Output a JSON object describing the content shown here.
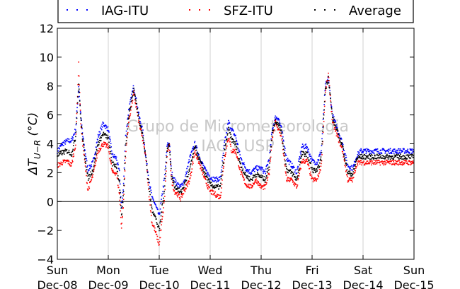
{
  "chart_data": {
    "type": "scatter",
    "title": "",
    "ylabel": "ΔT_{U−R} (°C)",
    "ylim": [
      -4,
      12
    ],
    "yticks": [
      -4,
      -2,
      0,
      2,
      4,
      6,
      8,
      10,
      12
    ],
    "xlim_days": [
      0,
      7
    ],
    "x_ticks": [
      {
        "day": "Sun",
        "date": "Dec-08"
      },
      {
        "day": "Mon",
        "date": "Dec-09"
      },
      {
        "day": "Tue",
        "date": "Dec-10"
      },
      {
        "day": "Wed",
        "date": "Dec-11"
      },
      {
        "day": "Thu",
        "date": "Dec-12"
      },
      {
        "day": "Fri",
        "date": "Dec-13"
      },
      {
        "day": "Sat",
        "date": "Dec-14"
      },
      {
        "day": "Sun",
        "date": "Dec-15"
      }
    ],
    "grid": "vertical",
    "zero_line": true,
    "legend_placement": "top",
    "watermark": [
      "Grupo de Micrometeorologia",
      "IAG - USP"
    ],
    "series": [
      {
        "name": "IAG-ITU",
        "color": "#0000ff",
        "x": [
          0,
          0.1,
          0.2,
          0.28,
          0.36,
          0.42,
          0.46,
          0.5,
          0.6,
          0.7,
          0.8,
          0.9,
          1.0,
          1.08,
          1.16,
          1.22,
          1.26,
          1.3,
          1.34,
          1.4,
          1.5,
          1.6,
          1.68,
          1.74,
          1.8,
          1.86,
          1.9,
          2.0,
          2.1,
          2.16,
          2.2,
          2.24,
          2.3,
          2.36,
          2.42,
          2.5,
          2.6,
          2.7,
          2.8,
          2.9,
          3.0,
          3.1,
          3.2,
          3.28,
          3.36,
          3.42,
          3.5,
          3.6,
          3.7,
          3.8,
          3.9,
          4.0,
          4.08,
          4.16,
          4.22,
          4.28,
          4.34,
          4.4,
          4.5,
          4.6,
          4.7,
          4.8,
          4.9,
          5.0,
          5.1,
          5.18,
          5.26,
          5.32,
          5.4,
          5.5,
          5.6,
          5.7,
          5.8,
          5.88,
          5.96,
          6.0,
          6.06,
          6.12,
          6.18,
          6.24,
          6.3,
          6.36,
          6.42,
          6.5,
          6.6,
          6.7,
          6.8,
          6.9,
          7.0
        ],
        "y": [
          3.5,
          4.0,
          4.2,
          4.2,
          5.0,
          8.0,
          6.0,
          4.5,
          2.2,
          2.7,
          4.5,
          5.4,
          5.0,
          3.2,
          3.0,
          2.0,
          -0.5,
          1.2,
          4.5,
          6.3,
          8.0,
          6.0,
          4.8,
          3.0,
          1.5,
          0.2,
          0.0,
          -1.0,
          1.5,
          4.0,
          4.0,
          2.0,
          1.5,
          1.2,
          1.0,
          1.5,
          3.0,
          4.0,
          3.0,
          2.2,
          1.7,
          1.5,
          1.6,
          4.0,
          5.5,
          5.0,
          4.5,
          3.0,
          2.3,
          2.0,
          2.3,
          2.3,
          2.0,
          3.0,
          5.0,
          5.8,
          5.8,
          5.0,
          3.0,
          2.5,
          2.0,
          3.8,
          3.8,
          2.8,
          2.7,
          3.5,
          8.0,
          8.5,
          6.0,
          5.0,
          4.0,
          2.5,
          2.3,
          3.2,
          3.5,
          3.5,
          3.5,
          3.5,
          3.5,
          3.5,
          3.5,
          3.5,
          3.5,
          3.5,
          3.5,
          3.5,
          3.5,
          3.5,
          3.5
        ]
      },
      {
        "name": "SFZ-ITU",
        "color": "#ff0000",
        "x": [
          0,
          0.1,
          0.2,
          0.28,
          0.36,
          0.42,
          0.46,
          0.5,
          0.6,
          0.7,
          0.8,
          0.9,
          1.0,
          1.08,
          1.16,
          1.22,
          1.26,
          1.3,
          1.34,
          1.4,
          1.5,
          1.6,
          1.68,
          1.74,
          1.8,
          1.86,
          1.9,
          2.0,
          2.1,
          2.16,
          2.2,
          2.24,
          2.3,
          2.36,
          2.42,
          2.5,
          2.6,
          2.7,
          2.8,
          2.9,
          3.0,
          3.1,
          3.2,
          3.28,
          3.36,
          3.42,
          3.5,
          3.6,
          3.7,
          3.8,
          3.9,
          4.0,
          4.08,
          4.16,
          4.22,
          4.28,
          4.34,
          4.4,
          4.5,
          4.6,
          4.7,
          4.8,
          4.9,
          5.0,
          5.1,
          5.18,
          5.26,
          5.32,
          5.4,
          5.5,
          5.6,
          5.7,
          5.8,
          5.88,
          5.96,
          6.0,
          6.06,
          6.12,
          6.18,
          6.24,
          6.3,
          6.36,
          6.42,
          6.5,
          6.6,
          6.7,
          6.8,
          6.9,
          7.0
        ],
        "y": [
          2.5,
          2.7,
          2.8,
          2.5,
          4.0,
          9.5,
          5.5,
          4.0,
          0.8,
          1.8,
          3.5,
          4.0,
          3.8,
          2.0,
          2.0,
          0.5,
          -1.8,
          0.0,
          3.2,
          5.5,
          7.5,
          5.5,
          4.2,
          3.0,
          0.5,
          -1.5,
          -1.8,
          -3.0,
          0.0,
          3.5,
          3.8,
          1.5,
          0.7,
          0.5,
          0.2,
          0.8,
          1.5,
          3.5,
          2.5,
          1.5,
          0.7,
          0.5,
          0.3,
          3.0,
          4.5,
          3.5,
          3.5,
          2.0,
          1.2,
          1.0,
          1.5,
          1.0,
          1.0,
          2.0,
          4.5,
          5.5,
          5.0,
          4.5,
          1.5,
          1.5,
          1.0,
          2.8,
          2.8,
          1.5,
          1.5,
          2.5,
          7.5,
          8.8,
          5.5,
          4.5,
          3.5,
          1.5,
          1.5,
          2.7,
          2.7,
          2.7,
          2.7,
          2.7,
          2.7,
          2.7,
          2.7,
          2.7,
          2.7,
          2.7,
          2.7,
          2.7,
          2.7,
          2.7,
          2.7
        ]
      },
      {
        "name": "Average",
        "color": "#000000",
        "x": [
          0,
          0.1,
          0.2,
          0.28,
          0.36,
          0.42,
          0.46,
          0.5,
          0.6,
          0.7,
          0.8,
          0.9,
          1.0,
          1.08,
          1.16,
          1.22,
          1.26,
          1.3,
          1.34,
          1.4,
          1.5,
          1.6,
          1.68,
          1.74,
          1.8,
          1.86,
          1.9,
          2.0,
          2.1,
          2.16,
          2.2,
          2.24,
          2.3,
          2.36,
          2.42,
          2.5,
          2.6,
          2.7,
          2.8,
          2.9,
          3.0,
          3.1,
          3.2,
          3.28,
          3.36,
          3.42,
          3.5,
          3.6,
          3.7,
          3.8,
          3.9,
          4.0,
          4.08,
          4.16,
          4.22,
          4.28,
          4.34,
          4.4,
          4.5,
          4.6,
          4.7,
          4.8,
          4.9,
          5.0,
          5.1,
          5.18,
          5.26,
          5.32,
          5.4,
          5.5,
          5.6,
          5.7,
          5.8,
          5.88,
          5.96,
          6.0,
          6.06,
          6.12,
          6.18,
          6.24,
          6.3,
          6.36,
          6.42,
          6.5,
          6.6,
          6.7,
          6.8,
          6.9,
          7.0
        ],
        "y": [
          3.2,
          3.4,
          3.5,
          3.3,
          4.5,
          8.2,
          5.8,
          4.2,
          1.6,
          2.2,
          4.0,
          4.7,
          4.4,
          2.6,
          2.5,
          1.2,
          -1.0,
          0.6,
          3.8,
          5.9,
          7.8,
          5.8,
          4.5,
          3.0,
          1.0,
          -0.6,
          -0.8,
          -2.0,
          0.8,
          3.8,
          3.9,
          1.8,
          1.1,
          0.9,
          0.6,
          1.2,
          2.2,
          3.8,
          2.8,
          1.9,
          1.2,
          1.0,
          1.0,
          3.5,
          5.0,
          4.3,
          4.0,
          2.5,
          1.8,
          1.5,
          1.9,
          1.7,
          1.5,
          2.5,
          4.8,
          5.6,
          5.4,
          4.8,
          2.2,
          2.0,
          1.5,
          3.3,
          3.3,
          2.2,
          2.1,
          3.0,
          7.8,
          8.6,
          5.8,
          4.8,
          3.8,
          2.0,
          1.9,
          3.0,
          3.1,
          3.1,
          3.1,
          3.1,
          3.1,
          3.1,
          3.1,
          3.1,
          3.1,
          3.1,
          3.1,
          3.1,
          3.1,
          3.1,
          3.1
        ]
      }
    ]
  }
}
